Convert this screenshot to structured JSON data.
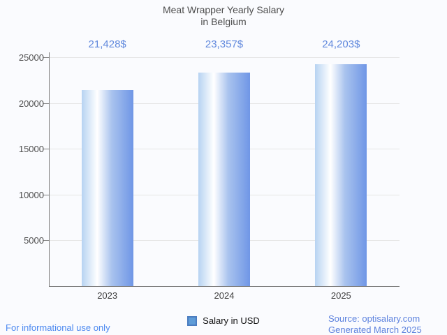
{
  "page": {
    "background": "#fafbfe"
  },
  "title": {
    "line1": "Meat Wrapper Yearly Salary",
    "line2": "in Belgium",
    "color": "#4d4d4d"
  },
  "chart_data": {
    "type": "bar",
    "title": "Meat Wrapper Yearly Salary in Belgium",
    "categories": [
      "2023",
      "2024",
      "2025"
    ],
    "values": [
      21428,
      23357,
      24203
    ],
    "value_labels": [
      "21,428$",
      "23,357$",
      "24,203$"
    ],
    "series": [
      {
        "name": "Salary in USD",
        "values": [
          21428,
          23357,
          24203
        ]
      }
    ],
    "xlabel": "",
    "ylabel": "",
    "ylim": [
      0,
      25000
    ],
    "yticks": [
      5000,
      10000,
      15000,
      20000,
      25000
    ],
    "grid": true,
    "legend_position": "bottom",
    "value_label_color": "#6189dd",
    "bar_gradient": [
      "#b7d3f2",
      "#ffffff",
      "#6f96e6"
    ]
  },
  "legend": {
    "label": "Salary in USD",
    "swatch_fill": "#5e9cd8",
    "swatch_border": "#4a7cc0"
  },
  "footer": {
    "left": "For informational use only",
    "left_color": "#4c89f0",
    "source_line1": "Source: optisalary.com",
    "source_line2": "Generated March 2025",
    "right_color": "#5c82de"
  }
}
